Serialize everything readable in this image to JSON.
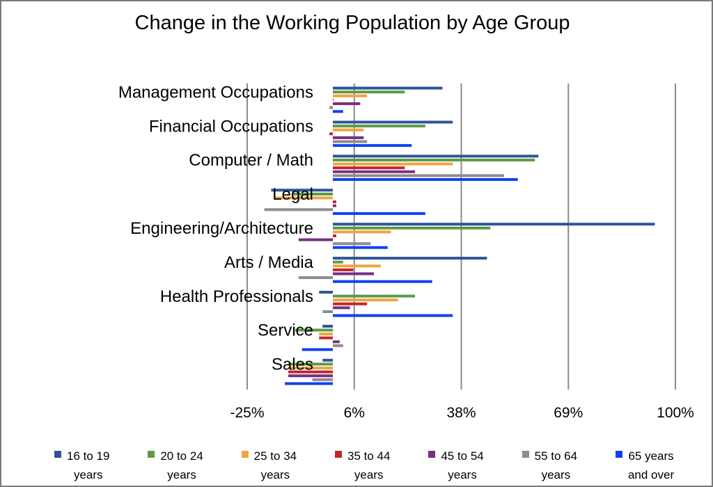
{
  "chart_data": {
    "type": "bar",
    "orientation": "horizontal",
    "title": "Change in the Working Population by Age Group",
    "categories": [
      "Management Occupations",
      "Financial Occupations",
      "Computer / Math",
      "Legal",
      "Engineering/Architecture",
      "Arts / Media",
      "Health Professionals",
      "Service",
      "Sales"
    ],
    "x_ticks": [
      "-25%",
      "6%",
      "38%",
      "69%",
      "100%"
    ],
    "xlim": [
      -25,
      100
    ],
    "grid": "vertical",
    "legend_position": "bottom",
    "series": [
      {
        "name": "16 to 19 years",
        "color": "#2f5597",
        "values": [
          32,
          35,
          60,
          -18,
          94,
          45,
          -4,
          -3,
          -3
        ]
      },
      {
        "name": "20 to 24 years",
        "color": "#5d9a48",
        "values": [
          21,
          27,
          59,
          -12,
          46,
          3,
          24,
          -11,
          -13
        ]
      },
      {
        "name": "25 to 34 years",
        "color": "#f0a440",
        "values": [
          10,
          9,
          35,
          -17,
          17,
          14,
          19,
          -4,
          -13
        ]
      },
      {
        "name": "35 to 44 years",
        "color": "#c0262e",
        "values": [
          0,
          -1,
          21,
          1,
          1,
          6,
          10,
          -4,
          -13
        ]
      },
      {
        "name": "45 to 54 years",
        "color": "#7a3080",
        "values": [
          8,
          9,
          24,
          1,
          -10,
          12,
          5,
          2,
          -13
        ]
      },
      {
        "name": "55 to 64 years",
        "color": "#8c8c8c",
        "values": [
          -1,
          10,
          50,
          -20,
          11,
          -10,
          -3,
          3,
          -6
        ]
      },
      {
        "name": "65 years and over",
        "color": "#1240f0",
        "values": [
          3,
          23,
          54,
          27,
          16,
          29,
          35,
          -9,
          -14
        ]
      }
    ],
    "legend_lines": [
      [
        "16 to 19",
        "years"
      ],
      [
        "20 to 24",
        "years"
      ],
      [
        "25 to 34",
        "years"
      ],
      [
        "35 to 44",
        "years"
      ],
      [
        "45 to 54",
        "years"
      ],
      [
        "55 to 64",
        "years"
      ],
      [
        "65 years",
        "and over"
      ]
    ]
  }
}
